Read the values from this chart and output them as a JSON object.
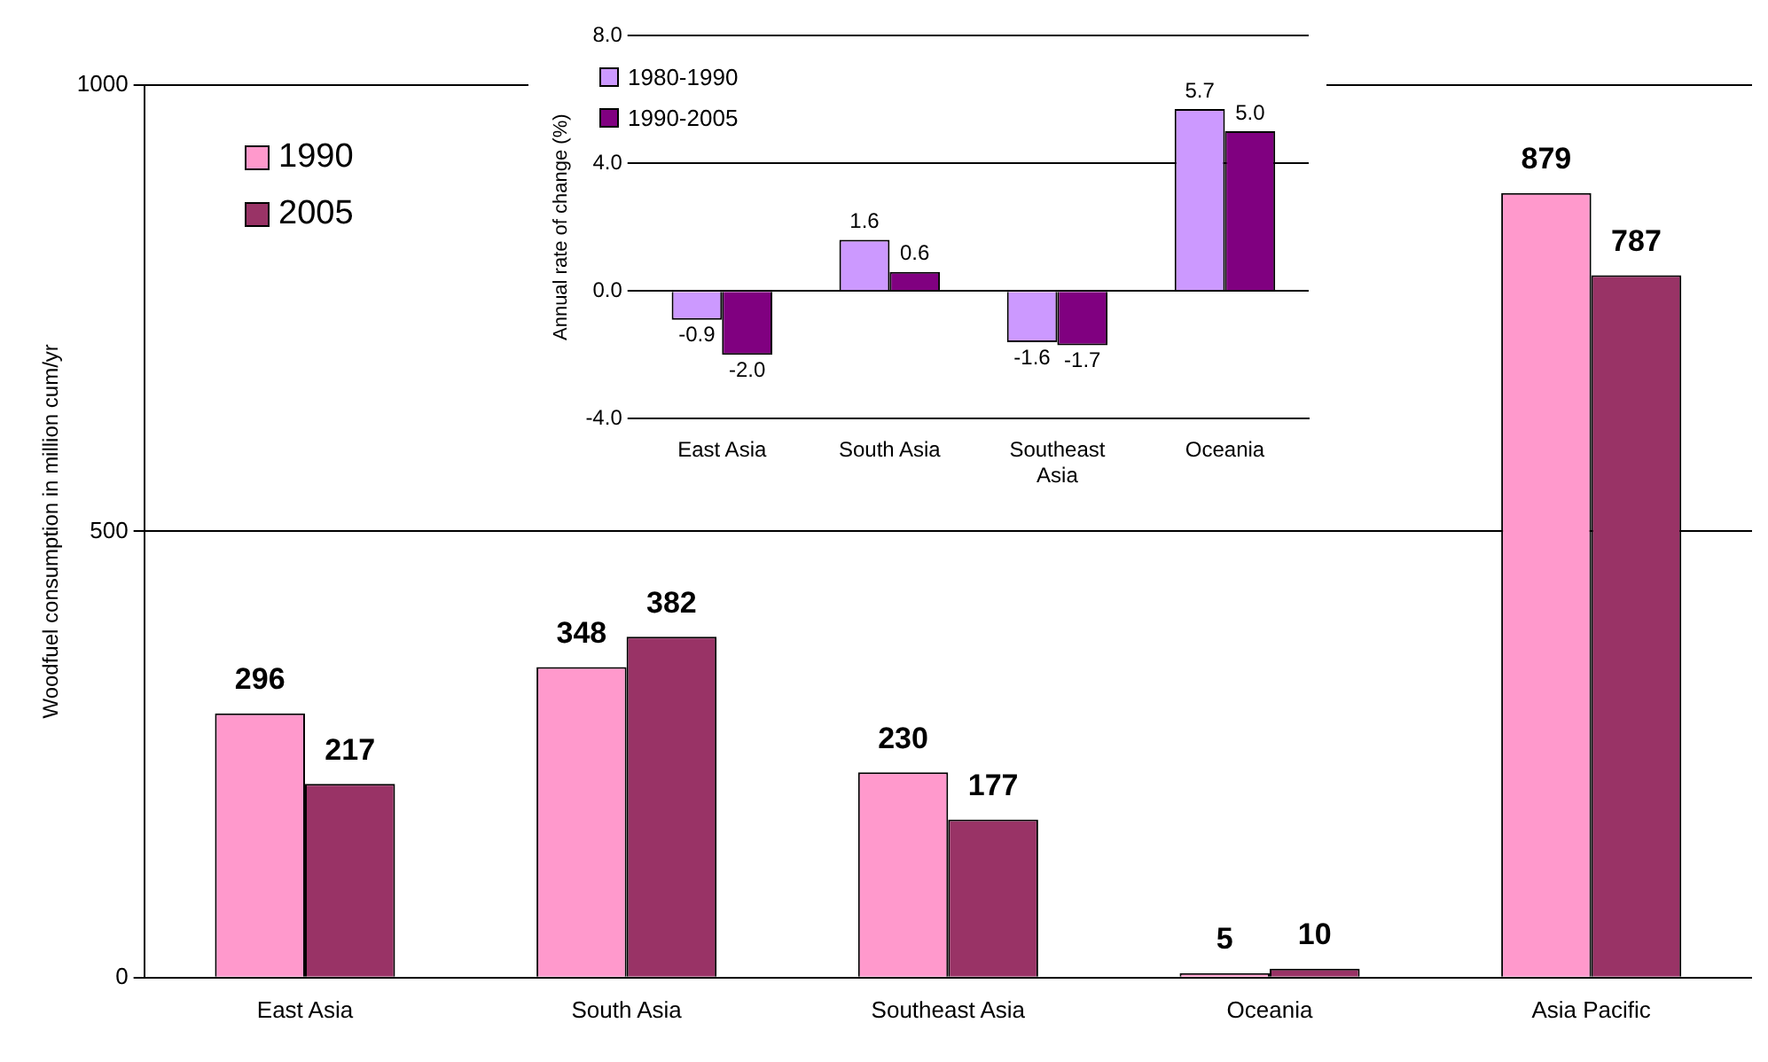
{
  "chart_data": [
    {
      "type": "bar",
      "ylabel": "Woodfuel consumption in million cum/yr",
      "categories": [
        "East Asia",
        "South Asia",
        "Southeast Asia",
        "Oceania",
        "Asia Pacific"
      ],
      "series": [
        {
          "name": "1990",
          "color": "#ff99cc",
          "values": [
            296,
            348,
            230,
            5,
            879
          ]
        },
        {
          "name": "2005",
          "color": "#993366",
          "values": [
            217,
            382,
            177,
            10,
            787
          ]
        }
      ],
      "ylim": [
        0,
        1000
      ],
      "yticks": [
        0,
        500,
        1000
      ],
      "grid": "y",
      "legend": "top left",
      "data_labels": true
    },
    {
      "type": "bar",
      "ylabel": "Annual rate of change (%)",
      "categories": [
        "East Asia",
        "South Asia",
        "Southeast Asia",
        "Oceania"
      ],
      "series": [
        {
          "name": "1980-1990",
          "color": "#cc99ff",
          "values": [
            -0.9,
            1.6,
            -1.6,
            5.7
          ],
          "value_labels": [
            "-0.9",
            "1.6",
            "-1.6",
            "5.7"
          ]
        },
        {
          "name": "1990-2005",
          "color": "#800080",
          "values": [
            -2.0,
            0.6,
            -1.7,
            5.0
          ],
          "value_labels": [
            "-2.0",
            "0.6",
            "-1.7",
            "5.0"
          ]
        }
      ],
      "ylim": [
        -4,
        8
      ],
      "yticks": [
        {
          "value": -4,
          "label": "-4.0"
        },
        {
          "value": 0,
          "label": "0.0"
        },
        {
          "value": 4,
          "label": "4.0"
        },
        {
          "value": 8,
          "label": "8.0"
        }
      ],
      "grid": "y",
      "legend": "top left"
    }
  ]
}
